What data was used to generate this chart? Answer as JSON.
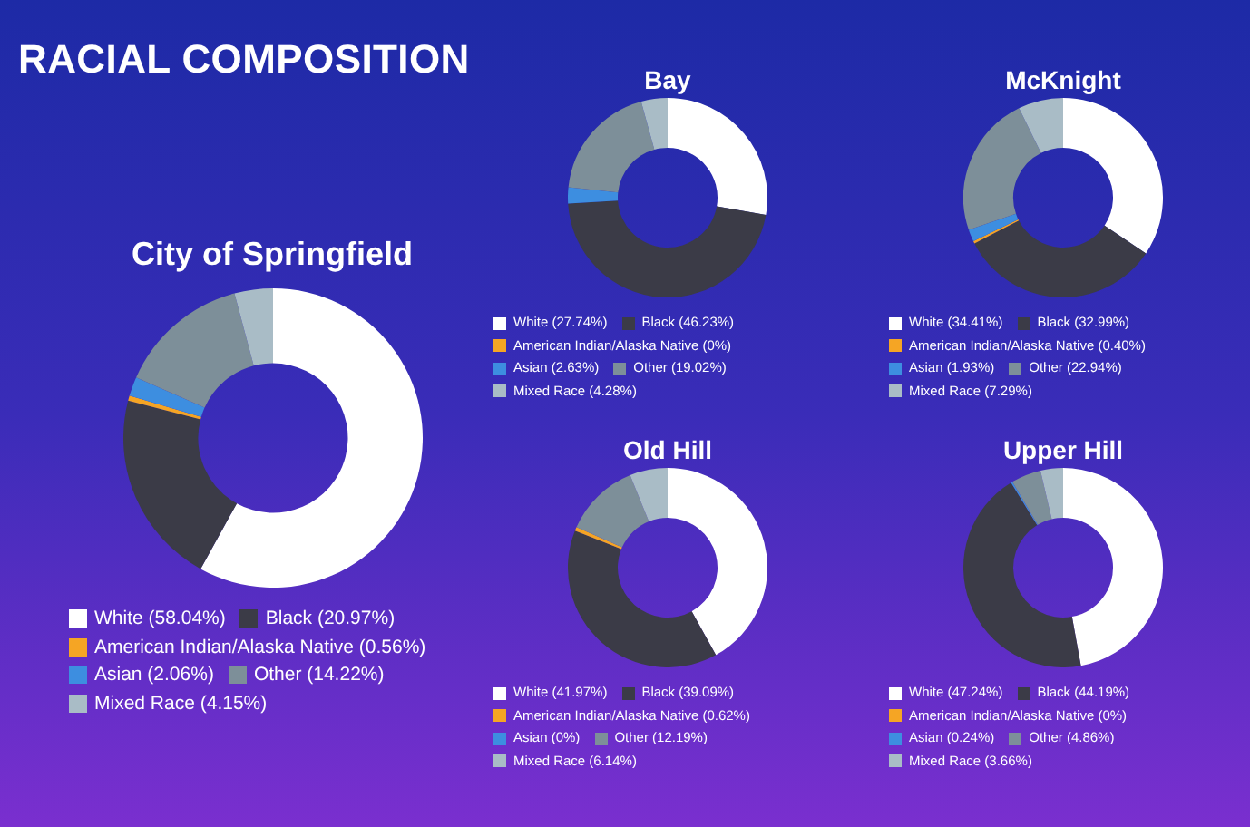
{
  "chart_data": [
    {
      "type": "donut",
      "title": "City of Springfield",
      "annotations": [
        "RACIAL COMPOSITION"
      ],
      "legend": "bottom",
      "categories": [
        "White (58.04%)",
        "Black (20.97%)",
        "American Indian/Alaska Native (0.56%)",
        "Asian (2.06%)",
        "Other (14.22%)",
        "Mixed Race (4.15%)"
      ],
      "values": [
        58.04,
        20.97,
        0.56,
        2.06,
        14.22,
        4.15
      ],
      "colors": [
        "#ffffff",
        "#3b3b47",
        "#f5a524",
        "#3d8ee0",
        "#7d8f99",
        "#a9bcc6"
      ]
    },
    {
      "type": "donut",
      "title": "Bay",
      "legend": "bottom",
      "categories": [
        "White (27.74%)",
        "Black (46.23%)",
        "American Indian/Alaska Native (0%)",
        "Asian (2.63%)",
        "Other (19.02%)",
        "Mixed Race (4.28%)"
      ],
      "values": [
        27.74,
        46.23,
        0,
        2.63,
        19.02,
        4.28
      ],
      "colors": [
        "#ffffff",
        "#3b3b47",
        "#f5a524",
        "#3d8ee0",
        "#7d8f99",
        "#a9bcc6"
      ]
    },
    {
      "type": "donut",
      "title": "McKnight",
      "legend": "bottom",
      "categories": [
        "White (34.41%)",
        "Black (32.99%)",
        "American Indian/Alaska Native (0.40%)",
        "Asian (1.93%)",
        "Other (22.94%)",
        "Mixed Race (7.29%)"
      ],
      "values": [
        34.41,
        32.99,
        0.4,
        1.93,
        22.94,
        7.29
      ],
      "colors": [
        "#ffffff",
        "#3b3b47",
        "#f5a524",
        "#3d8ee0",
        "#7d8f99",
        "#a9bcc6"
      ]
    },
    {
      "type": "donut",
      "title": "Old Hill",
      "legend": "bottom",
      "categories": [
        "White (41.97%)",
        "Black (39.09%)",
        "American Indian/Alaska Native (0.62%)",
        "Asian (0%)",
        "Other (12.19%)",
        "Mixed Race (6.14%)"
      ],
      "values": [
        41.97,
        39.09,
        0.62,
        0,
        12.19,
        6.14
      ],
      "colors": [
        "#ffffff",
        "#3b3b47",
        "#f5a524",
        "#3d8ee0",
        "#7d8f99",
        "#a9bcc6"
      ]
    },
    {
      "type": "donut",
      "title": "Upper Hill",
      "legend": "bottom",
      "categories": [
        "White (47.24%)",
        "Black (44.19%)",
        "American Indian/Alaska Native (0%)",
        "Asian (0.24%)",
        "Other (4.86%)",
        "Mixed Race (3.66%)"
      ],
      "values": [
        47.24,
        44.19,
        0,
        0.24,
        4.86,
        3.66
      ],
      "colors": [
        "#ffffff",
        "#3b3b47",
        "#f5a524",
        "#3d8ee0",
        "#7d8f99",
        "#a9bcc6"
      ]
    }
  ]
}
